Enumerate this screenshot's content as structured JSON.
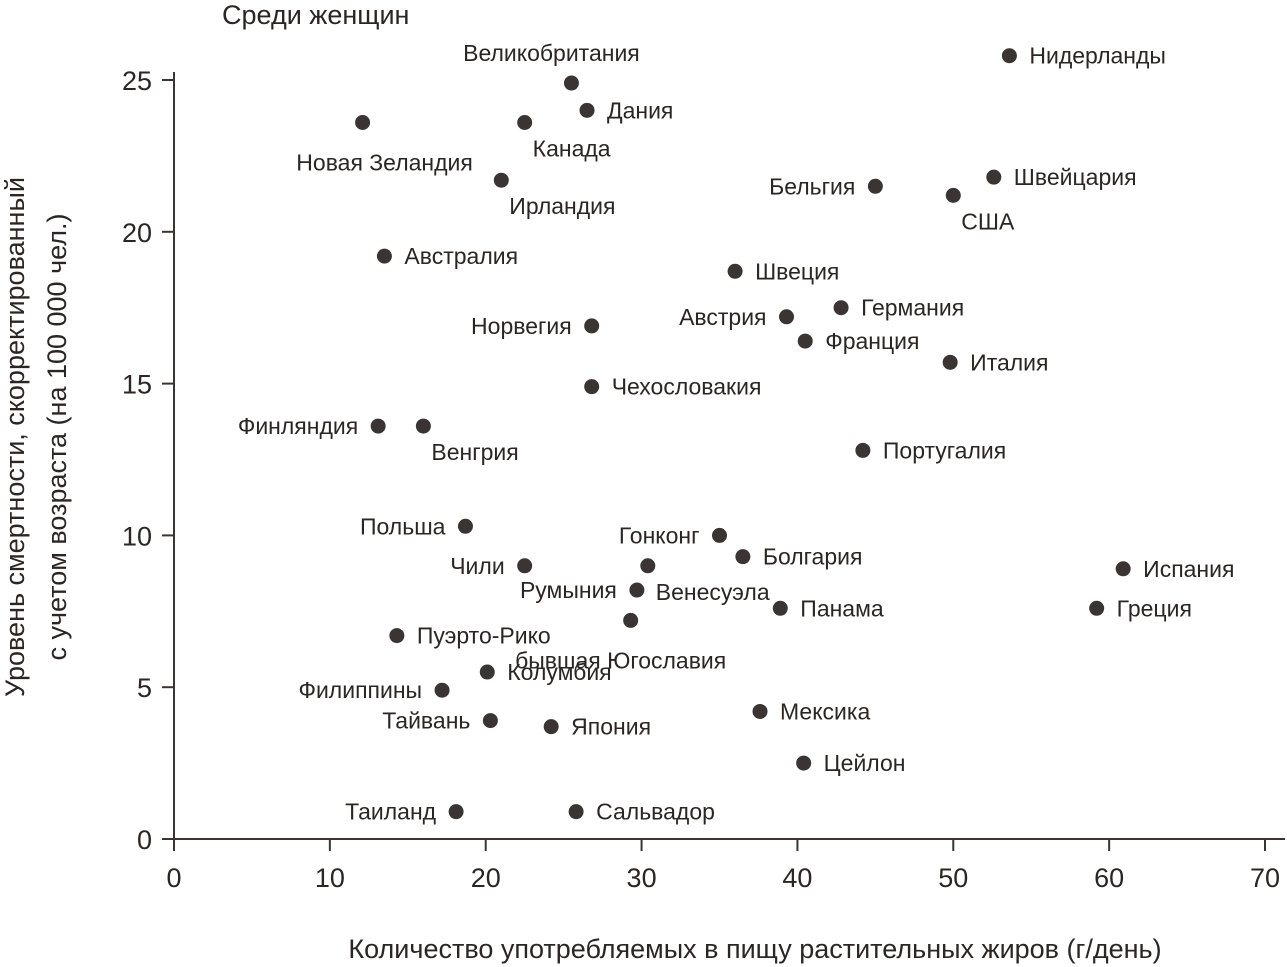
{
  "chart_data": {
    "type": "scatter",
    "title": "Среди женщин",
    "xlabel": "Количество употребляемых в пищу растительных жиров (г/день)",
    "ylabel_lines": [
      "Уровень смертности, скорректированный",
      "с учетом возраста (на 100 000 чел.)"
    ],
    "xlim": [
      0,
      70
    ],
    "ylim": [
      0,
      25
    ],
    "xticks": [
      "0",
      "10",
      "20",
      "30",
      "40",
      "50",
      "60",
      "70"
    ],
    "yticks": [
      "0",
      "5",
      "10",
      "15",
      "20",
      "25"
    ],
    "grid": false,
    "marker_color": "#3a3532",
    "points": [
      {
        "label": "Нидерланды",
        "x": 53.6,
        "y": 25.8,
        "pos": "right"
      },
      {
        "label": "Великобритания",
        "x": 25.5,
        "y": 24.9,
        "pos": "above"
      },
      {
        "label": "Дания",
        "x": 26.5,
        "y": 24.0,
        "pos": "right"
      },
      {
        "label": "Новая Зеландия",
        "x": 12.1,
        "y": 23.6,
        "pos": "below"
      },
      {
        "label": "Канада",
        "x": 22.5,
        "y": 23.6,
        "pos": "belowright"
      },
      {
        "label": "Ирландия",
        "x": 21.0,
        "y": 21.7,
        "pos": "belowright"
      },
      {
        "label": "Швейцария",
        "x": 52.6,
        "y": 21.8,
        "pos": "right"
      },
      {
        "label": "Бельгия",
        "x": 45.0,
        "y": 21.5,
        "pos": "left"
      },
      {
        "label": "США",
        "x": 50.0,
        "y": 21.2,
        "pos": "belowright"
      },
      {
        "label": "Австралия",
        "x": 13.5,
        "y": 19.2,
        "pos": "right"
      },
      {
        "label": "Швеция",
        "x": 36.0,
        "y": 18.7,
        "pos": "right"
      },
      {
        "label": "Германия",
        "x": 42.8,
        "y": 17.5,
        "pos": "right"
      },
      {
        "label": "Австрия",
        "x": 39.3,
        "y": 17.2,
        "pos": "left"
      },
      {
        "label": "Норвегия",
        "x": 26.8,
        "y": 16.9,
        "pos": "left"
      },
      {
        "label": "Франция",
        "x": 40.5,
        "y": 16.4,
        "pos": "right"
      },
      {
        "label": "Италия",
        "x": 49.8,
        "y": 15.7,
        "pos": "right"
      },
      {
        "label": "Чехословакия",
        "x": 26.8,
        "y": 14.9,
        "pos": "right"
      },
      {
        "label": "Финляндия",
        "x": 13.1,
        "y": 13.6,
        "pos": "left"
      },
      {
        "label": "Венгрия",
        "x": 16.0,
        "y": 13.6,
        "pos": "belowright"
      },
      {
        "label": "Португалия",
        "x": 44.2,
        "y": 12.8,
        "pos": "right"
      },
      {
        "label": "Польша",
        "x": 18.7,
        "y": 10.3,
        "pos": "left"
      },
      {
        "label": "Гонконг",
        "x": 35.0,
        "y": 10.0,
        "pos": "left"
      },
      {
        "label": "Болгария",
        "x": 36.5,
        "y": 9.3,
        "pos": "right"
      },
      {
        "label": "Чили",
        "x": 22.5,
        "y": 9.0,
        "pos": "left"
      },
      {
        "label": "Венесуэла",
        "x": 30.4,
        "y": 9.0,
        "pos": "belowright"
      },
      {
        "label": "Испания",
        "x": 60.9,
        "y": 8.9,
        "pos": "right"
      },
      {
        "label": "Румыния",
        "x": 29.7,
        "y": 8.2,
        "pos": "left"
      },
      {
        "label": "Панама",
        "x": 38.9,
        "y": 7.6,
        "pos": "right"
      },
      {
        "label": "Греция",
        "x": 59.2,
        "y": 7.6,
        "pos": "right"
      },
      {
        "label": "бывшая Югославия",
        "x": 29.3,
        "y": 7.2,
        "pos": "below"
      },
      {
        "label": "Пуэрто-Рико",
        "x": 14.3,
        "y": 6.7,
        "pos": "right"
      },
      {
        "label": "Колумбия",
        "x": 20.1,
        "y": 5.5,
        "pos": "right"
      },
      {
        "label": "Филиппины",
        "x": 17.2,
        "y": 4.9,
        "pos": "left"
      },
      {
        "label": "Мексика",
        "x": 37.6,
        "y": 4.2,
        "pos": "right"
      },
      {
        "label": "Тайвань",
        "x": 20.3,
        "y": 3.9,
        "pos": "left"
      },
      {
        "label": "Япония",
        "x": 24.2,
        "y": 3.7,
        "pos": "right"
      },
      {
        "label": "Цейлон",
        "x": 40.4,
        "y": 2.5,
        "pos": "right"
      },
      {
        "label": "Таиланд",
        "x": 18.1,
        "y": 0.9,
        "pos": "left"
      },
      {
        "label": "Сальвадор",
        "x": 25.8,
        "y": 0.9,
        "pos": "right"
      }
    ]
  }
}
